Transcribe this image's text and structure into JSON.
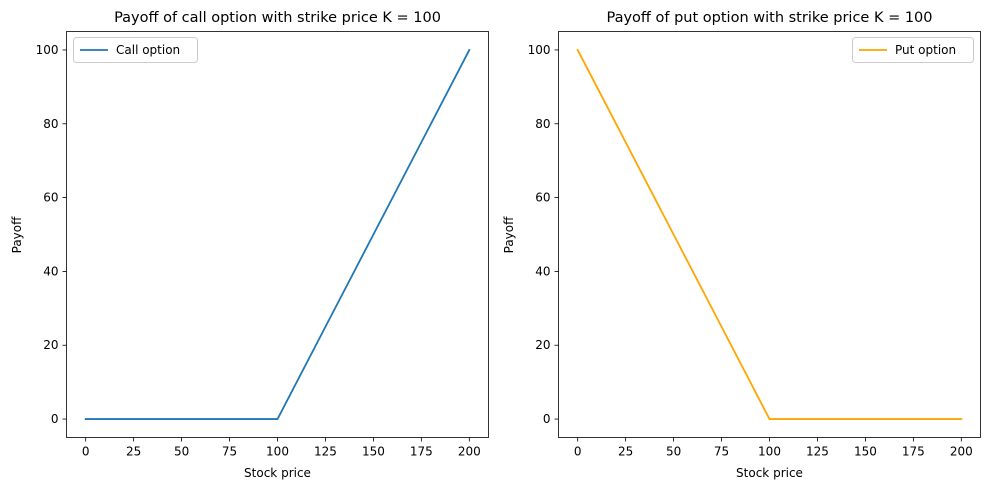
{
  "chart_data": [
    {
      "type": "line",
      "title": "Payoff of call option with strike price K = 100",
      "xlabel": "Stock price",
      "ylabel": "Payoff",
      "xlim": [
        -10,
        210
      ],
      "ylim": [
        -5,
        105
      ],
      "xticks": [
        0,
        25,
        50,
        75,
        100,
        125,
        150,
        175,
        200
      ],
      "yticks": [
        0,
        20,
        40,
        60,
        80,
        100
      ],
      "grid": false,
      "legend_position": "top-left",
      "series": [
        {
          "name": "Call option",
          "color": "#1f77b4",
          "x": [
            0,
            25,
            50,
            75,
            98,
            100,
            102,
            125,
            150,
            175,
            200
          ],
          "y": [
            0,
            0,
            0,
            0,
            0,
            0,
            2,
            25,
            50,
            75,
            100
          ]
        }
      ]
    },
    {
      "type": "line",
      "title": "Payoff of put option with strike price K = 100",
      "xlabel": "Stock price",
      "ylabel": "Payoff",
      "xlim": [
        -10,
        210
      ],
      "ylim": [
        -5,
        105
      ],
      "xticks": [
        0,
        25,
        50,
        75,
        100,
        125,
        150,
        175,
        200
      ],
      "yticks": [
        0,
        20,
        40,
        60,
        80,
        100
      ],
      "grid": false,
      "legend_position": "top-right",
      "series": [
        {
          "name": "Put option",
          "color": "#ffa500",
          "x": [
            0,
            25,
            50,
            75,
            98,
            100,
            102,
            125,
            150,
            175,
            200
          ],
          "y": [
            100,
            75,
            50,
            25,
            2,
            0,
            0,
            0,
            0,
            0,
            0
          ]
        }
      ]
    }
  ]
}
